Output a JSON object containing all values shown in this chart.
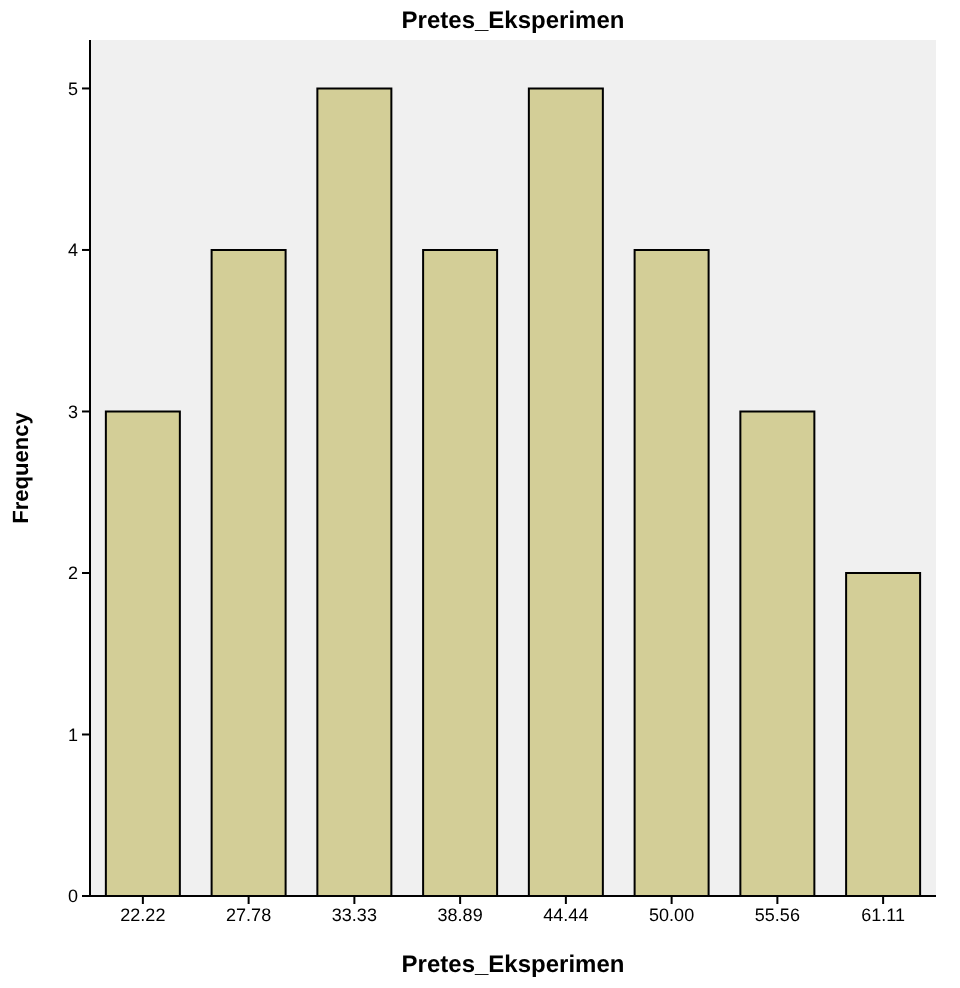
{
  "chart_data": {
    "type": "bar",
    "title": "Pretes_Eksperimen",
    "xlabel": "Pretes_Eksperimen",
    "ylabel": "Frequency",
    "categories": [
      "22.22",
      "27.78",
      "33.33",
      "38.89",
      "44.44",
      "50.00",
      "55.56",
      "61.11"
    ],
    "values": [
      3,
      4,
      5,
      4,
      5,
      4,
      3,
      2
    ],
    "color": "#d3ce97",
    "ylim": [
      0,
      5.3
    ],
    "yticks": [
      0,
      1,
      2,
      3,
      4,
      5
    ]
  }
}
